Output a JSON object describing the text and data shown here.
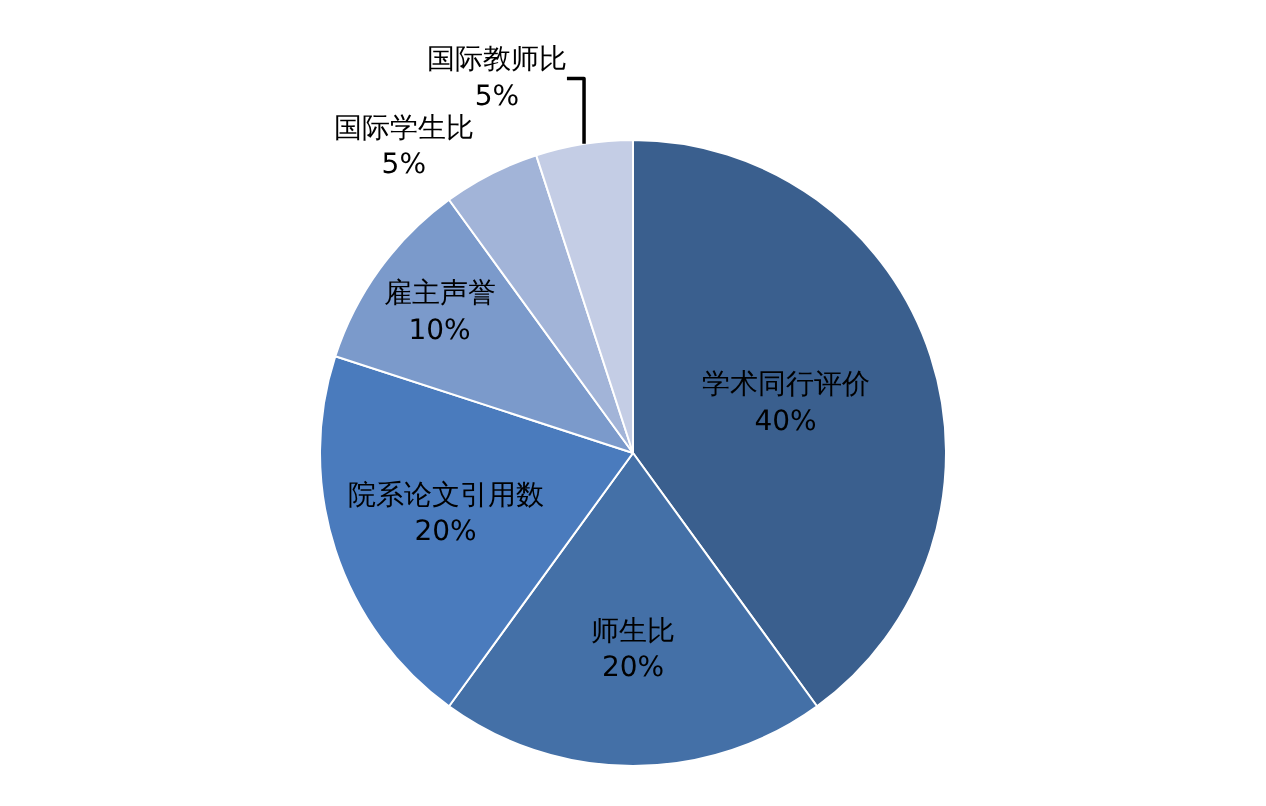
{
  "chart_data": {
    "type": "pie",
    "categories": [
      "学术同行评价",
      "师生比",
      "院系论文引用数",
      "雇主声誉",
      "国际学生比",
      "国际教师比"
    ],
    "values": [
      40,
      20,
      20,
      10,
      5,
      5
    ],
    "value_labels": [
      "40%",
      "20%",
      "20%",
      "10%",
      "5%",
      "5%"
    ],
    "colors": [
      "#3a5f8e",
      "#4470a7",
      "#4a7bbd",
      "#7b9acb",
      "#a2b4d8",
      "#c4cde5"
    ],
    "legend": false
  }
}
